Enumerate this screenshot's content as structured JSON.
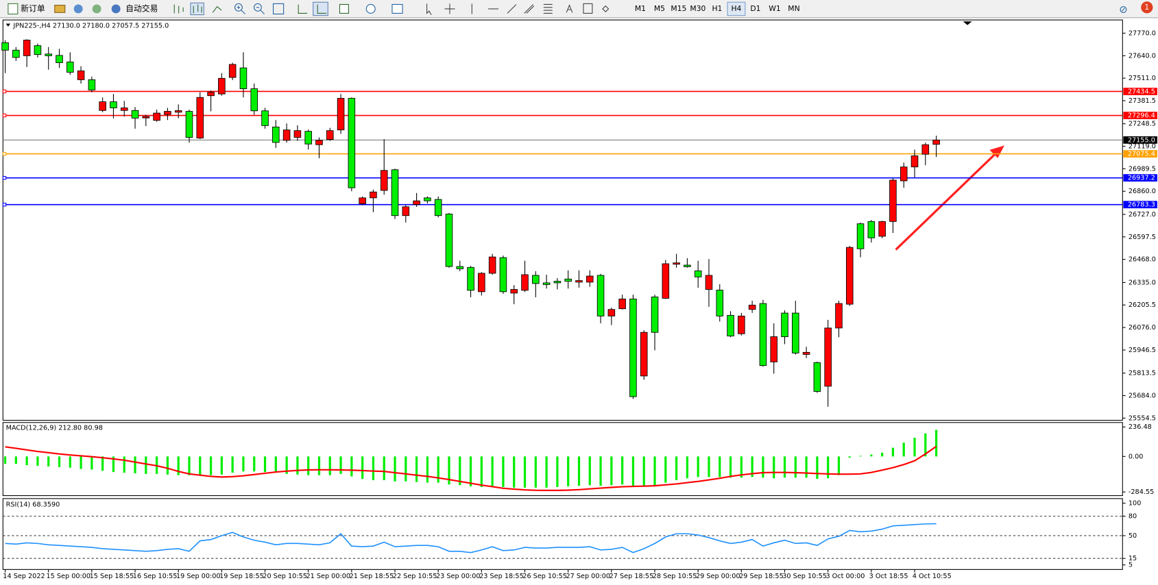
{
  "toolbar": {
    "new_order": "新订单",
    "auto_trading": "自动交易",
    "timeframes": [
      "M1",
      "M5",
      "M15",
      "M30",
      "H1",
      "H4",
      "D1",
      "W1",
      "MN"
    ],
    "active_timeframe": "H4",
    "alerts": "1"
  },
  "chart_data": [
    {
      "type": "candlestick",
      "title": "JPN225-,H4  27130.0 27180.0 27057.5 27155.0",
      "categories": [
        "14 Sep 2022",
        null,
        null,
        null,
        "15 Sep 00:00",
        null,
        null,
        null,
        "15 Sep 18:55",
        null,
        null,
        null,
        "16 Sep 10:55",
        null,
        null,
        null,
        "19 Sep 00:00",
        null,
        null,
        null,
        "19 Sep 18:55",
        null,
        null,
        null,
        "20 Sep 10:55",
        null,
        null,
        null,
        "21 Sep 00:00",
        null,
        null,
        null,
        "21 Sep 18:55",
        null,
        null,
        null,
        "22 Sep 10:55",
        null,
        null,
        null,
        "23 Sep 00:00",
        null,
        null,
        null,
        "23 Sep 18:55",
        null,
        null,
        null,
        "26 Sep 10:55",
        null,
        null,
        null,
        "27 Sep 00:00",
        null,
        null,
        null,
        "27 Sep 18:55",
        null,
        null,
        null,
        "28 Sep 10:55",
        null,
        null,
        null,
        "29 Sep 00:00",
        null,
        null,
        null,
        "29 Sep 18:55",
        null,
        null,
        null,
        "30 Sep 10:55",
        null,
        null,
        null,
        "3 Oct 00:00",
        null,
        null,
        null,
        "3 Oct 18:55",
        null,
        null,
        null,
        "4 Oct 10:55",
        null,
        null
      ],
      "open": [
        27715,
        27672,
        27640,
        27698,
        27650,
        27642,
        27604,
        27502,
        27502,
        27325,
        27375,
        27325,
        27325,
        27282,
        27268,
        27302,
        27315,
        27320,
        27166,
        27410,
        27420,
        27515,
        27570,
        27450,
        27323,
        27230,
        27153,
        27170,
        27205,
        27128,
        27158,
        27213,
        27395,
        26788,
        26822,
        26865,
        26984,
        26720,
        26784,
        26822,
        26813,
        26729,
        26427,
        26422,
        26282,
        26388,
        26478,
        26274,
        26290,
        26376,
        26333,
        26342,
        26355,
        26337,
        26337,
        26376,
        26142,
        26184,
        26240,
        25797,
        26252,
        26244,
        26440,
        26435,
        26402,
        26295,
        26291,
        26146,
        26040,
        26180,
        26214,
        25878,
        26159,
        26159,
        25921,
        25874,
        25738,
        26073,
        26210,
        26673,
        26686,
        26601,
        26686,
        26920,
        27000,
        27073,
        27130
      ],
      "high": [
        27730,
        27690,
        27735,
        27710,
        27690,
        27680,
        27660,
        27580,
        27520,
        27400,
        27420,
        27380,
        27345,
        27300,
        27330,
        27340,
        27360,
        27330,
        27430,
        27440,
        27540,
        27600,
        27660,
        27480,
        27340,
        27270,
        27250,
        27240,
        27215,
        27170,
        27225,
        27420,
        27400,
        26830,
        26870,
        27160,
        26990,
        26780,
        26850,
        26830,
        26830,
        26735,
        26460,
        26430,
        26395,
        26500,
        26490,
        26320,
        26460,
        26400,
        26380,
        26360,
        26405,
        26405,
        26405,
        26385,
        26190,
        26265,
        26265,
        26060,
        26265,
        26465,
        26500,
        26475,
        26460,
        26470,
        26325,
        26170,
        26160,
        26230,
        26235,
        26100,
        26175,
        26230,
        25965,
        25880,
        26120,
        26230,
        26545,
        26680,
        26695,
        26690,
        26935,
        27025,
        27100,
        27140,
        27180
      ],
      "low": [
        27540,
        27610,
        27575,
        27630,
        27560,
        27570,
        27530,
        27480,
        27430,
        27315,
        27280,
        27290,
        27220,
        27235,
        27260,
        27270,
        27280,
        27140,
        27160,
        27320,
        27410,
        27500,
        27400,
        27300,
        27220,
        27110,
        27140,
        27150,
        27100,
        27050,
        27150,
        27190,
        26860,
        26780,
        26740,
        26840,
        26700,
        26680,
        26770,
        26790,
        26710,
        26420,
        26400,
        26250,
        26260,
        26380,
        26270,
        26210,
        26280,
        26250,
        26300,
        26295,
        26300,
        26305,
        26310,
        26100,
        26090,
        26180,
        25665,
        25775,
        25945,
        26240,
        26420,
        26420,
        26305,
        26195,
        26110,
        26020,
        26030,
        26160,
        25850,
        25810,
        25980,
        25920,
        25900,
        25700,
        25620,
        26020,
        26200,
        26480,
        26565,
        26590,
        26620,
        26880,
        26940,
        27010,
        27057.5
      ],
      "close": [
        27672,
        27630,
        27730,
        27647,
        27640,
        27600,
        27545,
        27553,
        27443,
        27375,
        27340,
        27340,
        27281,
        27290,
        27310,
        27320,
        27324,
        27170,
        27400,
        27430,
        27510,
        27590,
        27450,
        27323,
        27238,
        27141,
        27213,
        27209,
        27132,
        27153,
        27209,
        27395,
        26880,
        26822,
        26856,
        26980,
        26720,
        26771,
        26805,
        26805,
        26720,
        26427,
        26414,
        26290,
        26388,
        26482,
        26282,
        26295,
        26380,
        26329,
        26323,
        26333,
        26342,
        26346,
        26372,
        26142,
        26180,
        26240,
        25678,
        26048,
        26048,
        26443,
        26448,
        26426,
        26367,
        26376,
        26142,
        26027,
        26142,
        26205,
        25857,
        26023,
        26023,
        25929,
        25933,
        25708,
        26073,
        26214,
        26537,
        26529,
        26592,
        26686,
        26924,
        27000,
        27064,
        27128,
        27155
      ],
      "up_color": "#ff0000",
      "down_color": "#00ee00",
      "ylim": [
        25542,
        27846
      ],
      "yticks": [
        {
          "value": 27770,
          "label": "27770.0"
        },
        {
          "value": 27640,
          "label": "27640.0"
        },
        {
          "value": 27511,
          "label": "27511.0"
        },
        27381.5,
        27248.5,
        {
          "value": 27119,
          "label": "27119.0"
        },
        26989.5,
        {
          "value": 26860,
          "label": "26860.0"
        },
        {
          "value": 26727,
          "label": "26727.0"
        },
        26597.5,
        {
          "value": 26468,
          "label": "26468.0"
        },
        {
          "value": 26335,
          "label": "26335.0"
        },
        26205.5,
        {
          "value": 26076,
          "label": "26076.0"
        },
        25946.5,
        25813.5,
        {
          "value": 25684,
          "label": "25684.0"
        },
        25554.5
      ],
      "levels": [
        {
          "value": 27434.5,
          "color": "#ff0000"
        },
        {
          "value": 27296.4,
          "color": "#ff0000"
        },
        {
          "value": 27075.4,
          "color": "#ffa000"
        },
        {
          "value": 26937.2,
          "color": "#0000ff"
        },
        {
          "value": 26783.3,
          "color": "#0000ff"
        }
      ],
      "current_price": {
        "value": 27155,
        "label": "27155.0"
      }
    },
    {
      "type": "macd",
      "title": "MACD(12,26,9) 212.80 80.98",
      "series": [
        {
          "color": "#00ee00",
          "values": [
            -60,
            -60,
            -70,
            -75,
            -80,
            -85,
            -90,
            -100,
            -105,
            -115,
            -125,
            -130,
            -135,
            -140,
            -140,
            -145,
            -150,
            -150,
            -155,
            -150,
            -145,
            -130,
            -120,
            -120,
            -125,
            -130,
            -140,
            -145,
            -150,
            -150,
            -150,
            -140,
            -160,
            -180,
            -190,
            -190,
            -200,
            -200,
            -205,
            -210,
            -210,
            -225,
            -230,
            -240,
            -245,
            -245,
            -245,
            -250,
            -250,
            -250,
            -250,
            -245,
            -240,
            -235,
            -230,
            -235,
            -230,
            -225,
            -240,
            -240,
            -230,
            -210,
            -190,
            -175,
            -165,
            -165,
            -165,
            -170,
            -170,
            -165,
            -170,
            -175,
            -170,
            -170,
            -170,
            -180,
            -175,
            -150,
            -10,
            5,
            15,
            30,
            70,
            110,
            150,
            185,
            212.8
          ]
        },
        {
          "color": "#ff0000",
          "values": [
            77,
            65,
            52,
            40,
            30,
            20,
            12,
            5,
            -2,
            -10,
            -20,
            -30,
            -45,
            -60,
            -75,
            -95,
            -120,
            -140,
            -150,
            -160,
            -165,
            -162,
            -155,
            -145,
            -135,
            -125,
            -118,
            -112,
            -108,
            -107,
            -107,
            -108,
            -110,
            -113,
            -117,
            -120,
            -130,
            -140,
            -150,
            -160,
            -172,
            -185,
            -200,
            -215,
            -230,
            -242,
            -255,
            -262,
            -268,
            -271,
            -272,
            -272,
            -270,
            -266,
            -260,
            -254,
            -248,
            -243,
            -240,
            -238,
            -235,
            -228,
            -220,
            -210,
            -200,
            -188,
            -175,
            -160,
            -148,
            -138,
            -130,
            -128,
            -128,
            -130,
            -133,
            -137,
            -140,
            -142,
            -142,
            -140,
            -128,
            -110,
            -90,
            -65,
            -35,
            20,
            80.98
          ]
        }
      ],
      "ylim": [
        -314,
        272
      ],
      "yticks": [
        236.48,
        {
          "value": 0,
          "label": "0.00"
        },
        -284.55
      ]
    },
    {
      "type": "rsi",
      "title": "RSI(14) 68.3590",
      "color": "#1e90ff",
      "values": [
        38,
        37,
        39,
        38,
        36,
        35,
        34,
        33,
        32,
        30,
        29,
        28,
        27,
        26,
        27,
        29,
        30,
        26,
        42,
        44,
        50,
        55,
        48,
        43,
        40,
        36,
        38,
        38,
        37,
        36,
        39,
        53,
        34,
        33,
        34,
        40,
        33,
        34,
        35,
        35,
        33,
        26,
        26,
        24,
        28,
        33,
        27,
        28,
        32,
        31,
        31,
        32,
        32,
        32,
        33,
        28,
        29,
        32,
        24,
        30,
        38,
        48,
        53,
        53,
        51,
        47,
        42,
        38,
        40,
        44,
        34,
        39,
        43,
        38,
        39,
        35,
        45,
        49,
        58,
        56,
        57,
        60,
        65,
        66,
        67,
        68,
        68.359
      ],
      "ylim": [
        -2,
        107
      ],
      "yticks": [
        100,
        80,
        50,
        15,
        5
      ],
      "levels": [
        80,
        50,
        15
      ]
    }
  ]
}
